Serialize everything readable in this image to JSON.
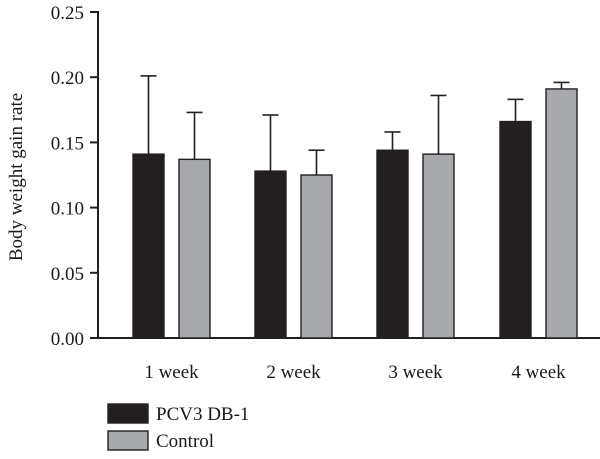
{
  "chart_data": {
    "type": "bar",
    "title": "",
    "xlabel": "",
    "ylabel": "Body weight gain rate",
    "ylim": [
      0,
      0.25
    ],
    "yticks": [
      "0.00",
      "0.05",
      "0.10",
      "0.15",
      "0.20",
      "0.25"
    ],
    "categories": [
      "1 week",
      "2 week",
      "3 week",
      "4 week"
    ],
    "series": [
      {
        "name": "PCV3 DB-1",
        "color": "#231f20",
        "values": [
          0.141,
          0.128,
          0.144,
          0.166
        ],
        "error_upper": [
          0.201,
          0.171,
          0.158,
          0.183
        ]
      },
      {
        "name": "Control",
        "color": "#a7a9ac",
        "values": [
          0.137,
          0.125,
          0.141,
          0.191
        ],
        "error_upper": [
          0.173,
          0.144,
          0.186,
          0.196
        ]
      }
    ],
    "legend_position": "bottom-left",
    "grid": false
  }
}
